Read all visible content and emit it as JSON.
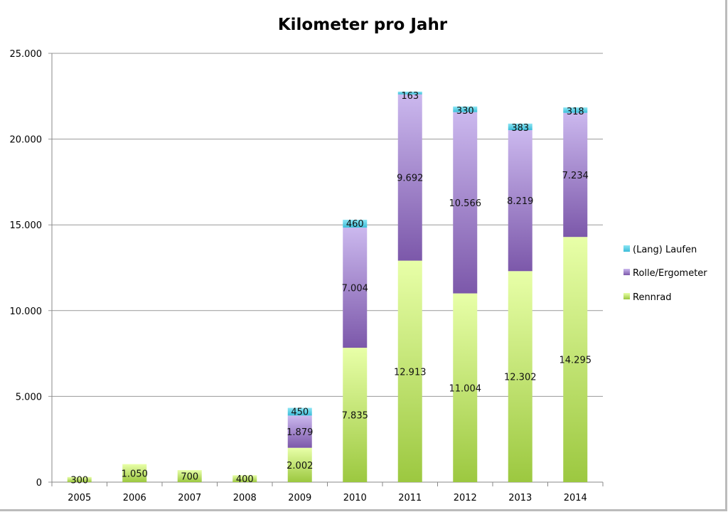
{
  "chart_data": {
    "type": "bar",
    "stacked": true,
    "title": "Kilometer pro Jahr",
    "xlabel": "",
    "ylabel": "",
    "categories": [
      "2005",
      "2006",
      "2007",
      "2008",
      "2009",
      "2010",
      "2011",
      "2012",
      "2013",
      "2014"
    ],
    "series": [
      {
        "name": "Rennrad",
        "color": "#a8d24a",
        "values": [
          300,
          1050,
          700,
          400,
          2002,
          7835,
          12913,
          11004,
          12302,
          14295
        ],
        "labels": [
          "300",
          "1.050",
          "700",
          "400",
          "2.002",
          "7.835",
          "12.913",
          "11.004",
          "12.302",
          "14.295"
        ]
      },
      {
        "name": "Rolle/Ergometer",
        "color": "#9a78c4",
        "values": [
          0,
          0,
          0,
          0,
          1879,
          7004,
          9692,
          10566,
          8219,
          7234
        ],
        "labels": [
          "",
          "",
          "",
          "",
          "1.879",
          "7.004",
          "9.692",
          "10.566",
          "8.219",
          "7.234"
        ]
      },
      {
        "name": "(Lang) Laufen",
        "color": "#4cc8e0",
        "values": [
          0,
          0,
          0,
          0,
          450,
          460,
          163,
          330,
          383,
          318
        ],
        "labels": [
          "",
          "",
          "",
          "",
          "450",
          "460",
          "163",
          "330",
          "383",
          "318"
        ]
      }
    ],
    "ylim": [
      0,
      25000
    ],
    "yticks": [
      0,
      5000,
      10000,
      15000,
      20000,
      25000
    ],
    "ytick_labels": [
      "0",
      "5.000",
      "10.000",
      "15.000",
      "20.000",
      "25.000"
    ],
    "grid": true,
    "legend_position": "right"
  }
}
